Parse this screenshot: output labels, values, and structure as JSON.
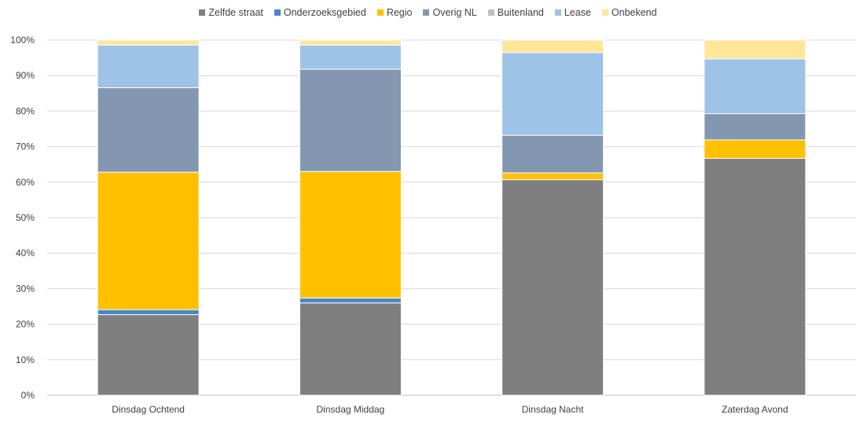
{
  "colors": {
    "zelfde_straat": "#7f7f7f",
    "onderzoeksgebied": "#4a86c8",
    "regio": "#ffc000",
    "overig_nl": "#8497b0",
    "buitenland": "#c0c0c0",
    "lease": "#9dc3e6",
    "onbekend": "#ffe699",
    "grid": "#d9d9d9",
    "axis": "#bfbfbf"
  },
  "chart_data": {
    "type": "bar",
    "stacked": true,
    "percent": true,
    "categories": [
      "Dinsdag Ochtend",
      "Dinsdag Middag",
      "Dinsdag Nacht",
      "Zaterdag Avond"
    ],
    "series": [
      {
        "name": "Zelfde straat",
        "color_key": "zelfde_straat",
        "values": [
          22.7,
          26.0,
          60.7,
          66.7
        ]
      },
      {
        "name": "Onderzoeksgebied",
        "color_key": "onderzoeksgebied",
        "values": [
          1.4,
          1.4,
          0.0,
          0.0
        ]
      },
      {
        "name": "Regio",
        "color_key": "regio",
        "values": [
          38.7,
          35.6,
          1.9,
          5.2
        ]
      },
      {
        "name": "Overig NL",
        "color_key": "overig_nl",
        "values": [
          23.8,
          28.8,
          10.6,
          7.4
        ]
      },
      {
        "name": "Buitenland",
        "color_key": "buitenland",
        "values": [
          0.0,
          0.0,
          0.0,
          0.0
        ]
      },
      {
        "name": "Lease",
        "color_key": "lease",
        "values": [
          12.0,
          6.8,
          23.3,
          15.4
        ]
      },
      {
        "name": "Onbekend",
        "color_key": "onbekend",
        "values": [
          1.4,
          1.4,
          3.5,
          5.3
        ]
      }
    ],
    "y_ticks": [
      "0%",
      "10%",
      "20%",
      "30%",
      "40%",
      "50%",
      "60%",
      "70%",
      "80%",
      "90%",
      "100%"
    ],
    "ylim": [
      0,
      100
    ],
    "grid": true,
    "legend_position": "top"
  }
}
